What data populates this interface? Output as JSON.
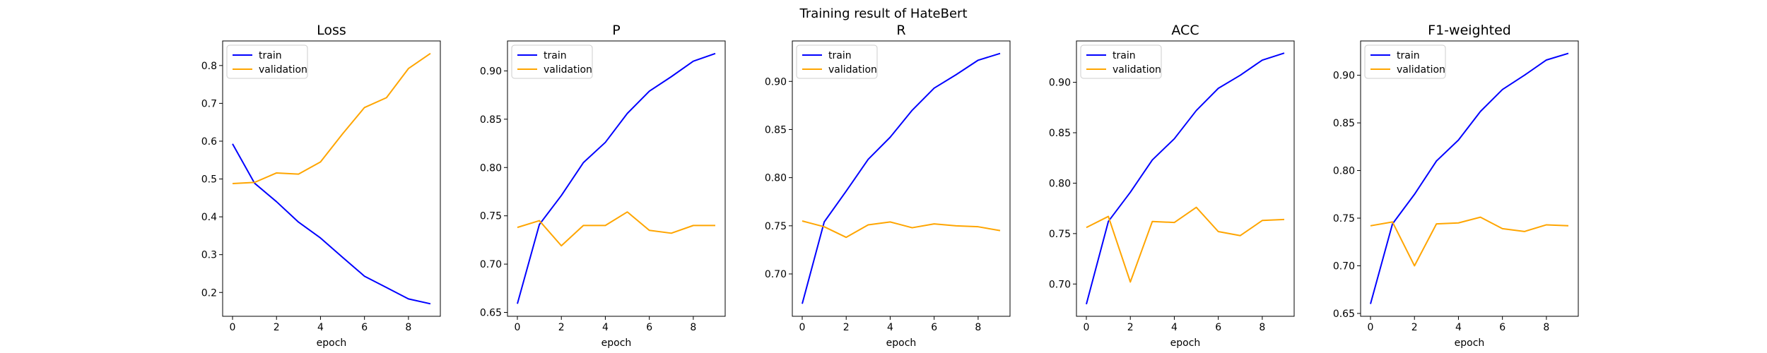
{
  "figure": {
    "suptitle": "Training result of HateBert"
  },
  "chart_data": [
    {
      "type": "line",
      "title": "Loss",
      "xlabel": "epoch",
      "ylabel": "",
      "x": [
        0,
        1,
        2,
        3,
        4,
        5,
        6,
        7,
        8,
        9
      ],
      "series": [
        {
          "name": "train",
          "color": "#0000ff",
          "values": [
            0.593,
            0.489,
            0.44,
            0.386,
            0.344,
            0.293,
            0.243,
            0.213,
            0.183,
            0.17
          ]
        },
        {
          "name": "validation",
          "color": "#ffa500",
          "values": [
            0.488,
            0.491,
            0.516,
            0.513,
            0.545,
            0.619,
            0.689,
            0.715,
            0.792,
            0.832
          ]
        }
      ],
      "xlim": [
        -0.45,
        9.45
      ],
      "ylim": [
        0.137,
        0.865
      ],
      "xticks": [
        0,
        2,
        4,
        6,
        8
      ],
      "yticks": [
        0.2,
        0.3,
        0.4,
        0.5,
        0.6,
        0.7,
        0.8
      ],
      "ytick_labels": [
        "0.2",
        "0.3",
        "0.4",
        "0.5",
        "0.6",
        "0.7",
        "0.8"
      ],
      "legend": "upper left"
    },
    {
      "type": "line",
      "title": "P",
      "xlabel": "epoch",
      "ylabel": "",
      "x": [
        0,
        1,
        2,
        3,
        4,
        5,
        6,
        7,
        8,
        9
      ],
      "series": [
        {
          "name": "train",
          "color": "#0000ff",
          "values": [
            0.659,
            0.741,
            0.771,
            0.805,
            0.826,
            0.856,
            0.879,
            0.894,
            0.91,
            0.918
          ]
        },
        {
          "name": "validation",
          "color": "#ffa500",
          "values": [
            0.738,
            0.745,
            0.719,
            0.74,
            0.74,
            0.754,
            0.735,
            0.732,
            0.74,
            0.74
          ]
        }
      ],
      "xlim": [
        -0.45,
        9.45
      ],
      "ylim": [
        0.646,
        0.931
      ],
      "xticks": [
        0,
        2,
        4,
        6,
        8
      ],
      "yticks": [
        0.65,
        0.7,
        0.75,
        0.8,
        0.85,
        0.9
      ],
      "ytick_labels": [
        "0.65",
        "0.70",
        "0.75",
        "0.80",
        "0.85",
        "0.90"
      ],
      "legend": "upper left"
    },
    {
      "type": "line",
      "title": "R",
      "xlabel": "epoch",
      "ylabel": "",
      "x": [
        0,
        1,
        2,
        3,
        4,
        5,
        6,
        7,
        8,
        9
      ],
      "series": [
        {
          "name": "train",
          "color": "#0000ff",
          "values": [
            0.669,
            0.754,
            0.786,
            0.819,
            0.842,
            0.87,
            0.893,
            0.907,
            0.922,
            0.929
          ]
        },
        {
          "name": "validation",
          "color": "#ffa500",
          "values": [
            0.755,
            0.749,
            0.738,
            0.751,
            0.754,
            0.748,
            0.752,
            0.75,
            0.749,
            0.745
          ]
        }
      ],
      "xlim": [
        -0.45,
        9.45
      ],
      "ylim": [
        0.656,
        0.942
      ],
      "xticks": [
        0,
        2,
        4,
        6,
        8
      ],
      "yticks": [
        0.7,
        0.75,
        0.8,
        0.85,
        0.9
      ],
      "ytick_labels": [
        "0.70",
        "0.75",
        "0.80",
        "0.85",
        "0.90"
      ],
      "legend": "upper left"
    },
    {
      "type": "line",
      "title": "ACC",
      "xlabel": "epoch",
      "ylabel": "",
      "x": [
        0,
        1,
        2,
        3,
        4,
        5,
        6,
        7,
        8,
        9
      ],
      "series": [
        {
          "name": "train",
          "color": "#0000ff",
          "values": [
            0.68,
            0.762,
            0.791,
            0.823,
            0.844,
            0.872,
            0.894,
            0.907,
            0.922,
            0.929
          ]
        },
        {
          "name": "validation",
          "color": "#ffa500",
          "values": [
            0.756,
            0.767,
            0.702,
            0.762,
            0.761,
            0.776,
            0.752,
            0.748,
            0.763,
            0.764
          ]
        }
      ],
      "xlim": [
        -0.45,
        9.45
      ],
      "ylim": [
        0.668,
        0.941
      ],
      "xticks": [
        0,
        2,
        4,
        6,
        8
      ],
      "yticks": [
        0.7,
        0.75,
        0.8,
        0.85,
        0.9
      ],
      "ytick_labels": [
        "0.70",
        "0.75",
        "0.80",
        "0.85",
        "0.90"
      ],
      "legend": "upper left"
    },
    {
      "type": "line",
      "title": "F1-weighted",
      "xlabel": "epoch",
      "ylabel": "",
      "x": [
        0,
        1,
        2,
        3,
        4,
        5,
        6,
        7,
        8,
        9
      ],
      "series": [
        {
          "name": "train",
          "color": "#0000ff",
          "values": [
            0.66,
            0.744,
            0.775,
            0.81,
            0.832,
            0.862,
            0.885,
            0.9,
            0.916,
            0.923
          ]
        },
        {
          "name": "validation",
          "color": "#ffa500",
          "values": [
            0.742,
            0.746,
            0.7,
            0.744,
            0.745,
            0.751,
            0.739,
            0.736,
            0.743,
            0.742
          ]
        }
      ],
      "xlim": [
        -0.45,
        9.45
      ],
      "ylim": [
        0.647,
        0.936
      ],
      "xticks": [
        0,
        2,
        4,
        6,
        8
      ],
      "yticks": [
        0.65,
        0.7,
        0.75,
        0.8,
        0.85,
        0.9
      ],
      "ytick_labels": [
        "0.65",
        "0.70",
        "0.75",
        "0.80",
        "0.85",
        "0.90"
      ],
      "legend": "upper left"
    }
  ]
}
